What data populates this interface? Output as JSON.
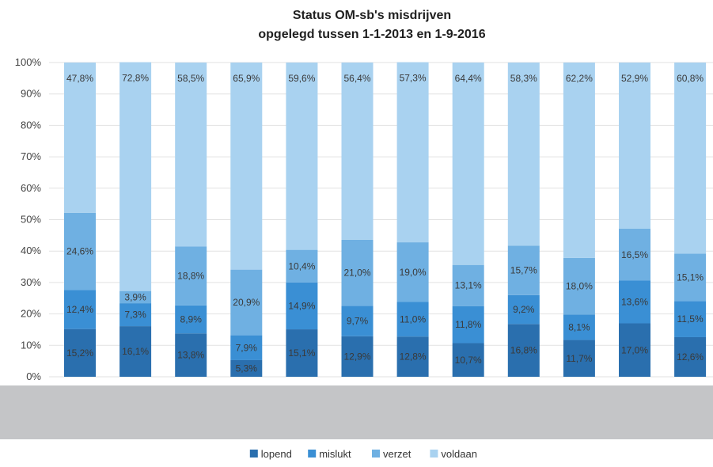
{
  "chart_data": {
    "type": "bar",
    "stacked": "percent",
    "title": [
      "Status OM-sb's misdrijven",
      "opgelegd tussen 1-1-2013 en 1-9-2016"
    ],
    "y_ticks": [
      "0%",
      "10%",
      "20%",
      "30%",
      "40%",
      "50%",
      "60%",
      "70%",
      "80%",
      "90%",
      "100%"
    ],
    "ylim": [
      0,
      100
    ],
    "grid": true,
    "legend_position": "bottom",
    "categories_visible": false,
    "bar_count": 12,
    "series": [
      {
        "name": "lopend",
        "color": "#2a6fae",
        "values": [
          15.2,
          16.1,
          13.8,
          5.3,
          15.1,
          12.9,
          12.8,
          10.7,
          16.8,
          11.7,
          17.0,
          12.6
        ],
        "labels": [
          "15,2%",
          "16,1%",
          "13,8%",
          "5,3%",
          "15,1%",
          "12,9%",
          "12,8%",
          "10,7%",
          "16,8%",
          "11,7%",
          "17,0%",
          "12,6%"
        ]
      },
      {
        "name": "mislukt",
        "color": "#3a8fd4",
        "values": [
          12.4,
          7.3,
          8.9,
          7.9,
          14.9,
          9.7,
          11.0,
          11.8,
          9.2,
          8.1,
          13.6,
          11.5
        ],
        "labels": [
          "12,4%",
          "7,3%",
          "8,9%",
          "7,9%",
          "14,9%",
          "9,7%",
          "11,0%",
          "11,8%",
          "9,2%",
          "8,1%",
          "13,6%",
          "11,5%"
        ]
      },
      {
        "name": "verzet",
        "color": "#6fb0e2",
        "values": [
          24.6,
          3.9,
          18.8,
          20.9,
          10.4,
          21.0,
          19.0,
          13.1,
          15.7,
          18.0,
          16.5,
          15.1
        ],
        "labels": [
          "24,6%",
          "3,9%",
          "18,8%",
          "20,9%",
          "10,4%",
          "21,0%",
          "19,0%",
          "13,1%",
          "15,7%",
          "18,0%",
          "16,5%",
          "15,1%"
        ]
      },
      {
        "name": "voldaan",
        "color": "#a9d2f0",
        "values": [
          47.8,
          72.8,
          58.5,
          65.9,
          59.6,
          56.4,
          57.3,
          64.4,
          58.3,
          62.2,
          52.9,
          60.8
        ],
        "labels": [
          "47,8%",
          "72,8%",
          "58,5%",
          "65,9%",
          "59,6%",
          "56,4%",
          "57,3%",
          "64,4%",
          "58,3%",
          "62,2%",
          "52,9%",
          "60,8%"
        ]
      }
    ]
  }
}
